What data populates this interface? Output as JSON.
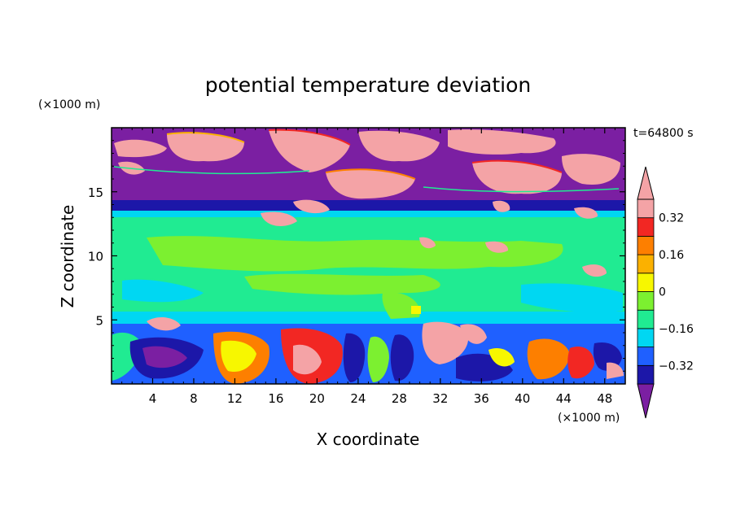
{
  "chart_data": {
    "type": "heatmap",
    "title": "potential temperature deviation",
    "xlabel": "X coordinate",
    "ylabel": "Z coordinate",
    "x_unit": "(×1000 m)",
    "y_unit": "(×1000 m)",
    "time_label": "t=64800 s",
    "xlim": [
      0,
      50
    ],
    "ylim": [
      0,
      20
    ],
    "x_ticks": [
      4,
      8,
      12,
      16,
      20,
      24,
      28,
      32,
      36,
      40,
      44,
      48
    ],
    "y_ticks": [
      5,
      10,
      15
    ],
    "colorbar": {
      "levels": [
        -0.4,
        -0.32,
        -0.24,
        -0.16,
        -0.08,
        0,
        0.08,
        0.16,
        0.24,
        0.32,
        0.4
      ],
      "colors": [
        "#7b1fa2",
        "#1c17a8",
        "#1f60ff",
        "#00d7f2",
        "#20eb92",
        "#7cf030",
        "#f7f700",
        "#fbb100",
        "#fd7f00",
        "#f22723",
        "#f4a3a6"
      ],
      "labeled_ticks": [
        -0.32,
        -0.16,
        0,
        0.16,
        0.32
      ],
      "extends": "both"
    },
    "field_summary": [
      {
        "z_range": [
          14,
          20
        ],
        "value": -0.4,
        "note": "upper layer, with positive patches"
      },
      {
        "z_range": [
          13.5,
          14.2
        ],
        "value": -0.32
      },
      {
        "z_range": [
          12,
          13.5
        ],
        "value": -0.08
      },
      {
        "z_range": [
          5,
          12
        ],
        "value": 0
      },
      {
        "z_range": [
          0,
          5
        ],
        "value": "mixed -0.4 to 0.4"
      }
    ]
  },
  "colors": {
    "axis": "#000000",
    "background": "#ffffff"
  }
}
